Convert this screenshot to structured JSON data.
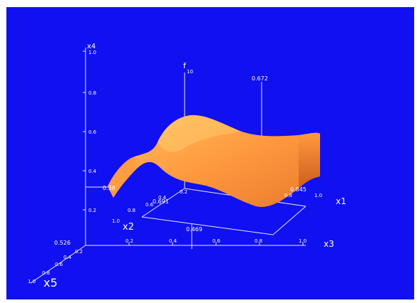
{
  "axes": {
    "x1": "x1",
    "x2": "x2",
    "x3": "x3",
    "x4": "x4",
    "x5": "x5",
    "f": "f"
  },
  "ticks": {
    "x4": [
      "1.0",
      "0.8",
      "0.6",
      "0.4",
      "0.2"
    ],
    "x3": [
      "0.2",
      "0.4",
      "0.6",
      "0.8",
      "1.0"
    ],
    "x1": [
      "0.8",
      "1.0"
    ],
    "x2": [
      "0.2",
      "0.4",
      "0.6",
      "0.8",
      "1.0"
    ],
    "x5": [
      "0.2",
      "0.4",
      "0.6",
      "0.8",
      "1.0"
    ],
    "f": "10"
  },
  "values": {
    "f_marker": "0.672",
    "x4_marker": "0.38",
    "x1_marker": "0.845",
    "x2_marker": "0.691",
    "x3_marker": "0.469",
    "x5_marker": "0.526"
  },
  "colors": {
    "background": "#1010f0",
    "surface_light": "#ffbf5a",
    "surface_mid": "#ff9a40",
    "surface_dark": "#d86a20",
    "axis": "#e8e8ff"
  }
}
